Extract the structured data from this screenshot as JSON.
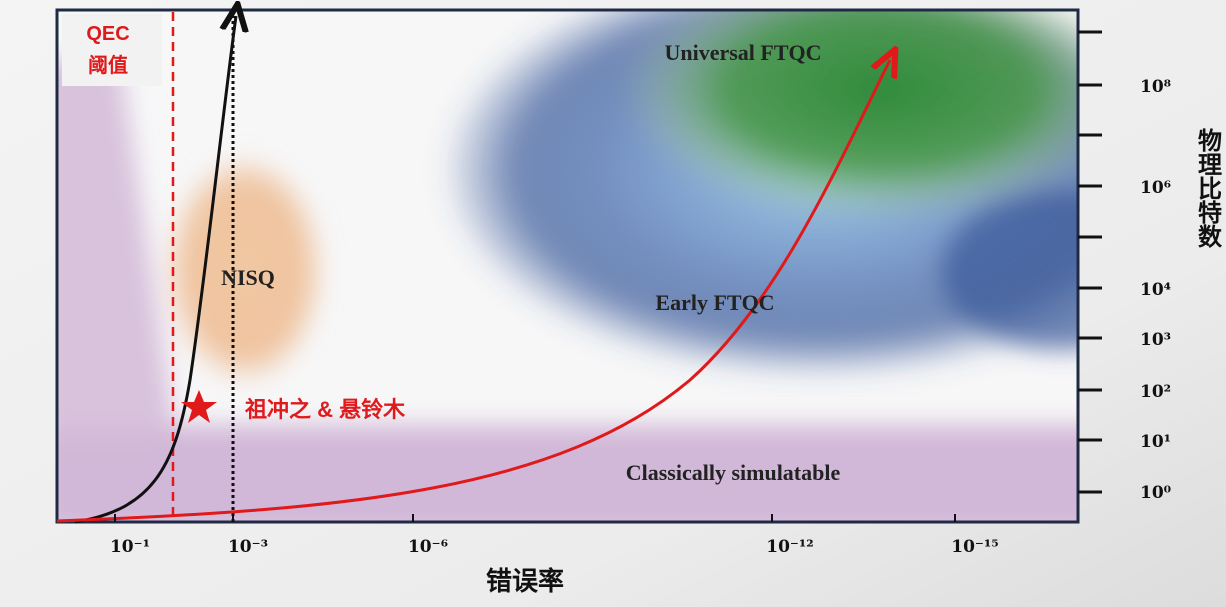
{
  "threshold_label": {
    "line1": "QEC",
    "line2": "阈值"
  },
  "regions": [
    "Universal FTQC",
    "NISQ",
    "Early FTQC",
    "Classically simulatable"
  ],
  "marker_label": "祖冲之 & 悬铃木",
  "x_axis": {
    "title": "错误率",
    "tick_labels": [
      "10⁻¹",
      "10⁻³",
      "10⁻⁶",
      "10⁻¹²",
      "10⁻¹⁵"
    ]
  },
  "y_axis": {
    "title": "物理比特数",
    "tick_labels": [
      "10⁸",
      "10⁶",
      "10⁴",
      "10³",
      "10²",
      "10¹",
      "10⁰"
    ]
  }
}
